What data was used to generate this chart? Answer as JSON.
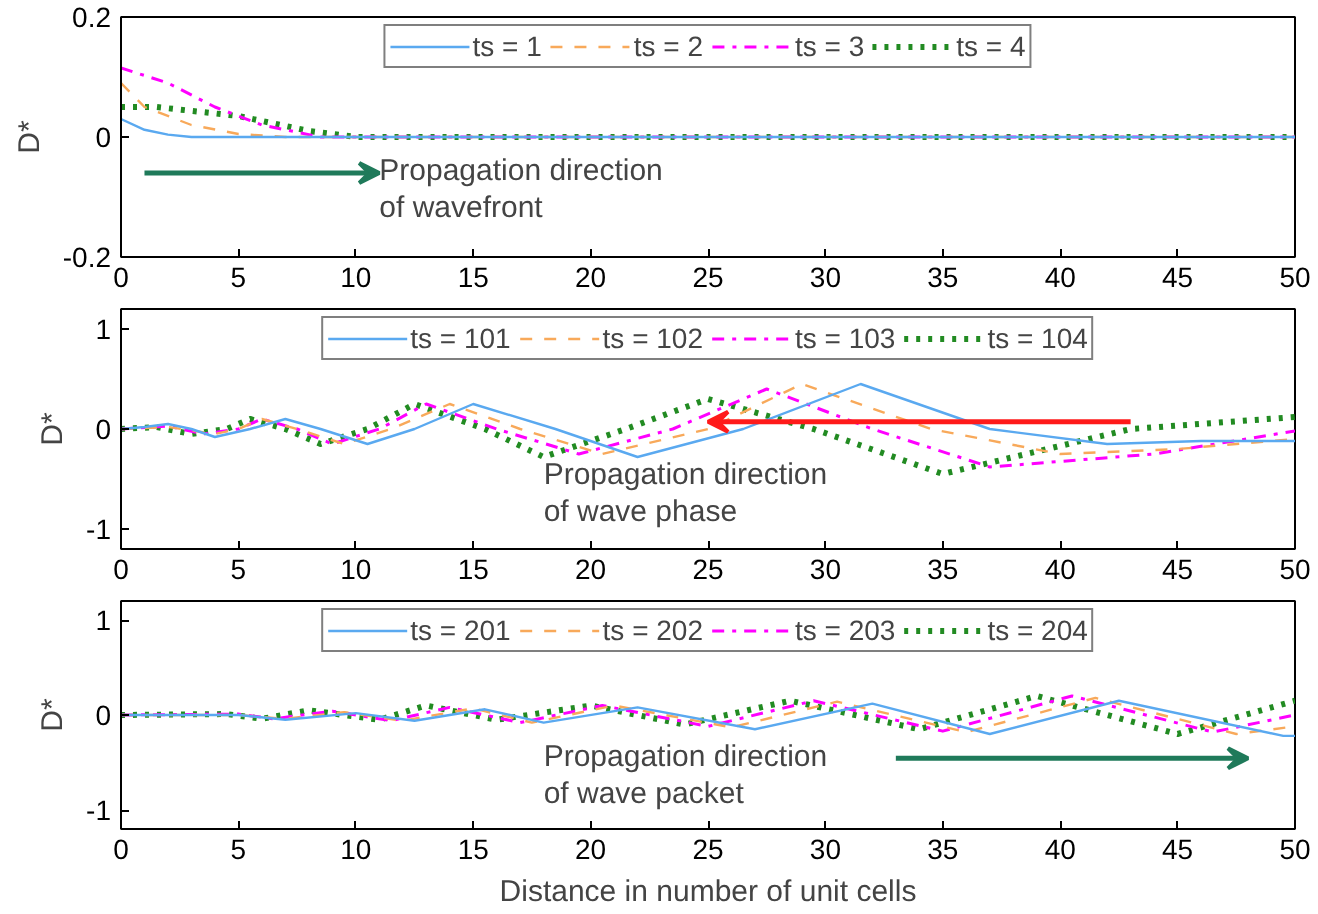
{
  "chart_data": [
    {
      "type": "line",
      "ylabel": "D*",
      "xlim": [
        0,
        50
      ],
      "ylim": [
        -0.2,
        0.2
      ],
      "xticks": [
        0,
        5,
        10,
        15,
        20,
        25,
        30,
        35,
        40,
        45,
        50
      ],
      "yticks": [
        -0.2,
        0,
        0.2
      ],
      "grid": false,
      "legend": "top",
      "annotations": [
        "Propagation direction\nof wavefront"
      ],
      "series": [
        {
          "name": "ts = 1",
          "color": "#5aa9f0",
          "line_style": "solid",
          "x": [
            0,
            1,
            2,
            3,
            50
          ],
          "values": [
            0.03,
            0.012,
            0.004,
            0,
            0
          ]
        },
        {
          "name": "ts = 2",
          "color": "#f8a95a",
          "line_style": "dashed",
          "x": [
            0,
            1,
            3,
            5,
            7,
            50
          ],
          "values": [
            0.09,
            0.05,
            0.02,
            0.005,
            0,
            0
          ]
        },
        {
          "name": "ts = 3",
          "color": "#ff00ff",
          "line_style": "dashdot",
          "x": [
            0,
            2,
            4,
            6,
            8.5,
            50
          ],
          "values": [
            0.115,
            0.09,
            0.05,
            0.02,
            0,
            0
          ]
        },
        {
          "name": "ts = 4",
          "color": "#228b22",
          "line_style": "dotted",
          "x": [
            0,
            1.5,
            5,
            8,
            10,
            50
          ],
          "values": [
            0.05,
            0.05,
            0.035,
            0.01,
            0,
            0
          ]
        }
      ]
    },
    {
      "type": "line",
      "ylabel": "D*",
      "xlim": [
        0,
        50
      ],
      "ylim": [
        -1.2,
        1.2
      ],
      "xticks": [
        0,
        5,
        10,
        15,
        20,
        25,
        30,
        35,
        40,
        45,
        50
      ],
      "yticks": [
        -1,
        0,
        1
      ],
      "grid": false,
      "legend": "top",
      "annotations": [
        "Propagation direction\nof wave phase"
      ],
      "series": [
        {
          "name": "ts = 101",
          "color": "#5aa9f0",
          "line_style": "solid",
          "x": [
            0,
            1,
            2,
            3,
            4,
            5.5,
            7,
            8.5,
            10.5,
            12.5,
            15,
            18.5,
            22,
            26.5,
            31.5,
            37,
            42,
            46,
            50
          ],
          "values": [
            0,
            0.02,
            0.05,
            0,
            -0.08,
            0,
            0.1,
            0,
            -0.15,
            0,
            0.25,
            0,
            -0.28,
            0,
            0.45,
            0,
            -0.15,
            -0.12,
            -0.12
          ]
        },
        {
          "name": "ts = 102",
          "color": "#f8a95a",
          "line_style": "dashed",
          "x": [
            0,
            2,
            4,
            5,
            6,
            7.5,
            9.5,
            11.5,
            14,
            17,
            20.5,
            25,
            29,
            34.5,
            40,
            45,
            50
          ],
          "values": [
            0,
            0.02,
            -0.05,
            0,
            0.1,
            0,
            -0.15,
            0,
            0.25,
            0,
            -0.25,
            0,
            0.45,
            0,
            -0.25,
            -0.2,
            -0.1
          ]
        },
        {
          "name": "ts = 103",
          "color": "#ff00ff",
          "line_style": "dashdot",
          "x": [
            0,
            2,
            3.5,
            5,
            6,
            7.5,
            9,
            11,
            13,
            16,
            19.5,
            23.5,
            27.5,
            32,
            37,
            44,
            50
          ],
          "values": [
            0,
            0.03,
            -0.05,
            0,
            0.1,
            0,
            -0.15,
            0,
            0.25,
            0,
            -0.25,
            0,
            0.4,
            0,
            -0.38,
            -0.25,
            -0.02
          ]
        },
        {
          "name": "ts = 104",
          "color": "#228b22",
          "line_style": "dotted",
          "x": [
            0,
            1.5,
            3,
            4.5,
            5.5,
            7,
            8.5,
            10.5,
            12.5,
            15.5,
            18,
            21.5,
            25,
            29.5,
            35,
            43,
            50
          ],
          "values": [
            0,
            0.02,
            -0.05,
            0,
            0.1,
            0,
            -0.15,
            0,
            0.25,
            0,
            -0.28,
            0,
            0.3,
            0,
            -0.45,
            0,
            0.12
          ]
        }
      ]
    },
    {
      "type": "line",
      "ylabel": "D*",
      "xlabel": "Distance in number of unit cells",
      "xlim": [
        0,
        50
      ],
      "ylim": [
        -1.2,
        1.2
      ],
      "xticks": [
        0,
        5,
        10,
        15,
        20,
        25,
        30,
        35,
        40,
        45,
        50
      ],
      "yticks": [
        -1,
        0,
        1
      ],
      "grid": false,
      "legend": "top",
      "annotations": [
        "Propagation direction\nof wave packet"
      ],
      "series": [
        {
          "name": "ts = 201",
          "color": "#5aa9f0",
          "line_style": "solid",
          "x": [
            0,
            5,
            7,
            10,
            12.5,
            15.5,
            18,
            22,
            27,
            32,
            37,
            42.5,
            49.5,
            50
          ],
          "values": [
            0,
            0,
            -0.05,
            0.02,
            -0.06,
            0.06,
            -0.08,
            0.08,
            -0.15,
            0.12,
            -0.2,
            0.15,
            -0.22,
            -0.22
          ]
        },
        {
          "name": "ts = 202",
          "color": "#f8a95a",
          "line_style": "dashed",
          "x": [
            0,
            5,
            7,
            9.5,
            12,
            15,
            17.5,
            21,
            26,
            30.5,
            36,
            41.5,
            47.5,
            50
          ],
          "values": [
            0,
            0,
            -0.04,
            0.03,
            -0.06,
            0.07,
            -0.08,
            0.1,
            -0.13,
            0.14,
            -0.18,
            0.18,
            -0.2,
            -0.12
          ]
        },
        {
          "name": "ts = 203",
          "color": "#ff00ff",
          "line_style": "dashdot",
          "x": [
            0,
            5,
            6.5,
            9,
            11.5,
            14,
            17,
            20.5,
            25,
            29.5,
            35,
            40.5,
            46.5,
            50
          ],
          "values": [
            0,
            0.01,
            -0.04,
            0.04,
            -0.06,
            0.08,
            -0.08,
            0.1,
            -0.12,
            0.15,
            -0.17,
            0.2,
            -0.18,
            0
          ]
        },
        {
          "name": "ts = 204",
          "color": "#228b22",
          "line_style": "dotted",
          "x": [
            0,
            4.5,
            6,
            8,
            11,
            13,
            16,
            20,
            24,
            28.5,
            34,
            39,
            45,
            50
          ],
          "values": [
            0,
            0.01,
            -0.04,
            0.05,
            -0.05,
            0.1,
            -0.05,
            0.1,
            -0.1,
            0.15,
            -0.15,
            0.2,
            -0.2,
            0.15
          ]
        }
      ]
    }
  ]
}
